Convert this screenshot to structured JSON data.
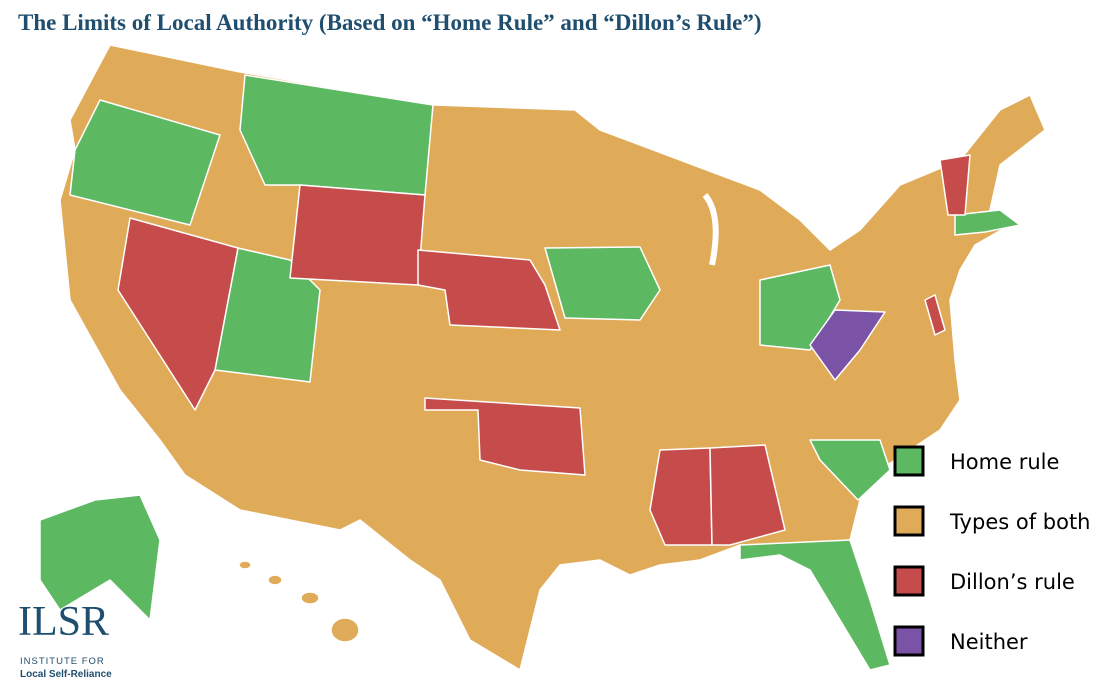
{
  "title": "The Limits of Local Authority (Based on “Home Rule” and “Dillon’s Rule”)",
  "legend": [
    {
      "label": "Home rule",
      "color": "#5db862"
    },
    {
      "label": "Types of both",
      "color": "#e0ab58"
    },
    {
      "label": "Dillon’s rule",
      "color": "#c64c4c"
    },
    {
      "label": "Neither",
      "color": "#7b53a6"
    }
  ],
  "logo": {
    "mark": "ILSR",
    "line1": "INSTITUTE FOR",
    "line2": "Local Self-Reliance"
  }
}
